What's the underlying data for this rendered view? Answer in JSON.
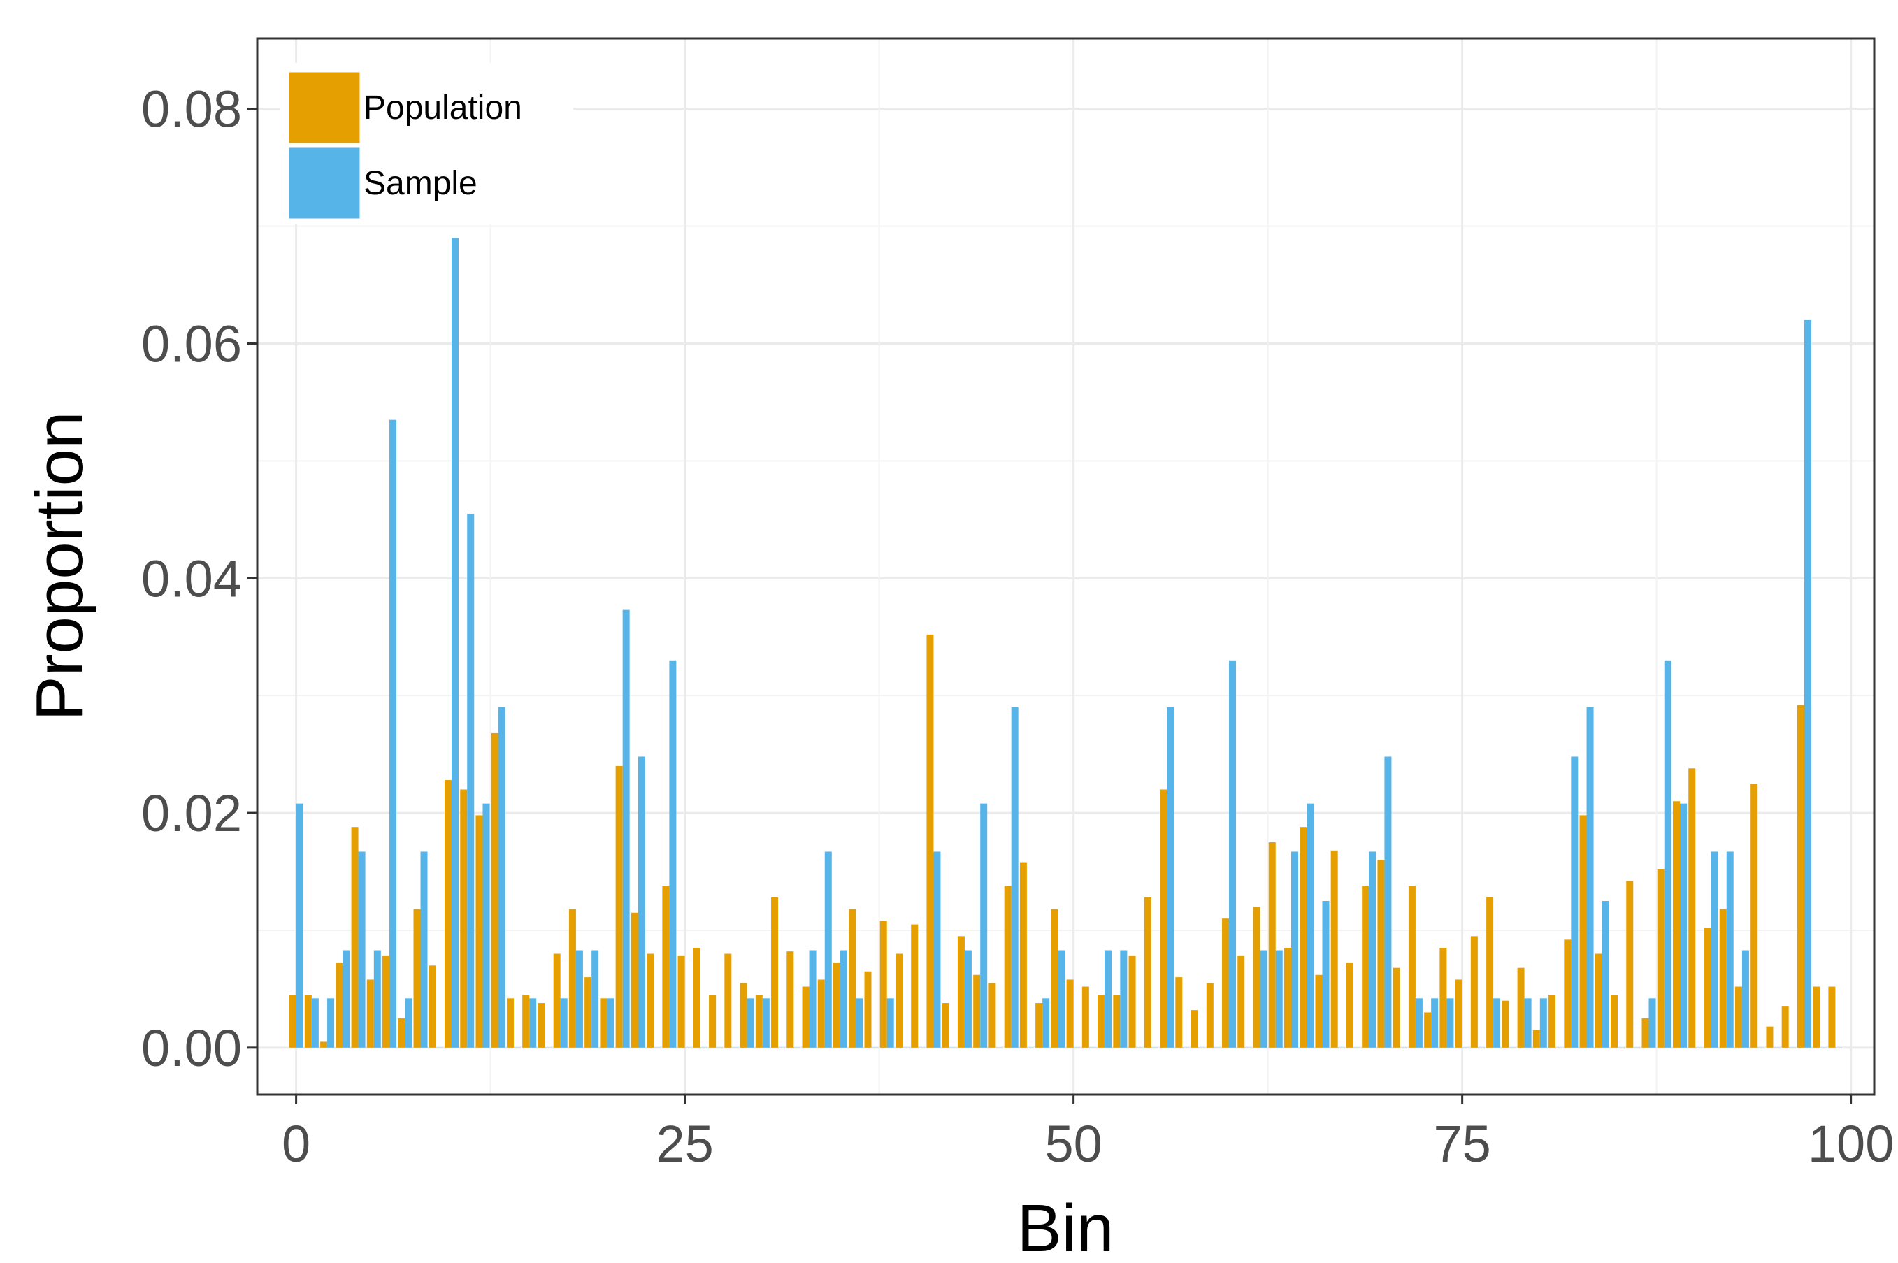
{
  "chart_data": {
    "type": "bar",
    "xlabel": "Bin",
    "ylabel": "Proportion",
    "xlim": [
      -2.5,
      101.5
    ],
    "ylim": [
      -0.004,
      0.086
    ],
    "x_ticks": [
      0,
      25,
      50,
      75,
      100
    ],
    "x_tick_labels": [
      "0",
      "25",
      "50",
      "75",
      "100"
    ],
    "y_ticks": [
      0,
      0.02,
      0.04,
      0.06,
      0.08
    ],
    "y_tick_labels": [
      "0.00",
      "0.02",
      "0.04",
      "0.06",
      "0.08"
    ],
    "grid": true,
    "legend_position": "top-left",
    "bars": "dodged",
    "series": [
      {
        "name": "Population",
        "color": "#E69F00",
        "values": [
          0.0045,
          0.0045,
          0.0005,
          0.0072,
          0.0188,
          0.0058,
          0.0078,
          0.0025,
          0.0118,
          0.007,
          0.0228,
          0.022,
          0.0198,
          0.0268,
          0.0042,
          0.0045,
          0.0038,
          0.008,
          0.0118,
          0.006,
          0.0042,
          0.024,
          0.0115,
          0.008,
          0.0138,
          0.0078,
          0.0085,
          0.0045,
          0.008,
          0.0055,
          0.0045,
          0.0128,
          0.0082,
          0.0052,
          0.0058,
          0.0072,
          0.0118,
          0.0065,
          0.0108,
          0.008,
          0.0105,
          0.0352,
          0.0038,
          0.0095,
          0.0062,
          0.0055,
          0.0138,
          0.0158,
          0.0038,
          0.0118,
          0.0058,
          0.0052,
          0.0045,
          0.0045,
          0.0078,
          0.0128,
          0.022,
          0.006,
          0.0032,
          0.0055,
          0.011,
          0.0078,
          0.012,
          0.0175,
          0.0085,
          0.0188,
          0.0062,
          0.0168,
          0.0072,
          0.0138,
          0.016,
          0.0068,
          0.0138,
          0.003,
          0.0085,
          0.0058,
          0.0095,
          0.0128,
          0.004,
          0.0068,
          0.0015,
          0.0045,
          0.0092,
          0.0198,
          0.008,
          0.0045,
          0.0142,
          0.0025,
          0.0152,
          0.021,
          0.0238,
          0.0102,
          0.0118,
          0.0052,
          0.0225,
          0.0018,
          0.0035,
          0.0292,
          0.0052,
          0.0052
        ]
      },
      {
        "name": "Sample",
        "color": "#56B4E9",
        "values": [
          0.0208,
          0.0042,
          0.0042,
          0.0083,
          0.0167,
          0.0083,
          0.0535,
          0.0042,
          0.0167,
          0.0,
          0.069,
          0.0455,
          0.0208,
          0.029,
          0.0,
          0.0042,
          0.0,
          0.0042,
          0.0083,
          0.0083,
          0.0042,
          0.0373,
          0.0248,
          0.0,
          0.033,
          0.0,
          0.0,
          0.0,
          0.0,
          0.0042,
          0.0042,
          0.0,
          0.0,
          0.0083,
          0.0167,
          0.0083,
          0.0042,
          0.0,
          0.0042,
          0.0,
          0.0,
          0.0167,
          0.0,
          0.0083,
          0.0208,
          0.0,
          0.029,
          0.0,
          0.0042,
          0.0083,
          0.0,
          0.0,
          0.0083,
          0.0083,
          0.0,
          0.0,
          0.029,
          0.0,
          0.0,
          0.0,
          0.033,
          0.0,
          0.0083,
          0.0083,
          0.0167,
          0.0208,
          0.0125,
          0.0,
          0.0,
          0.0167,
          0.0248,
          0.0,
          0.0042,
          0.0042,
          0.0042,
          0.0,
          0.0,
          0.0042,
          0.0,
          0.0042,
          0.0042,
          0.0,
          0.0248,
          0.029,
          0.0125,
          0.0,
          0.0,
          0.0042,
          0.033,
          0.0208,
          0.0,
          0.0167,
          0.0167,
          0.0083,
          0.0,
          0.0,
          0.0,
          0.062,
          0.0,
          0.0
        ]
      }
    ]
  }
}
